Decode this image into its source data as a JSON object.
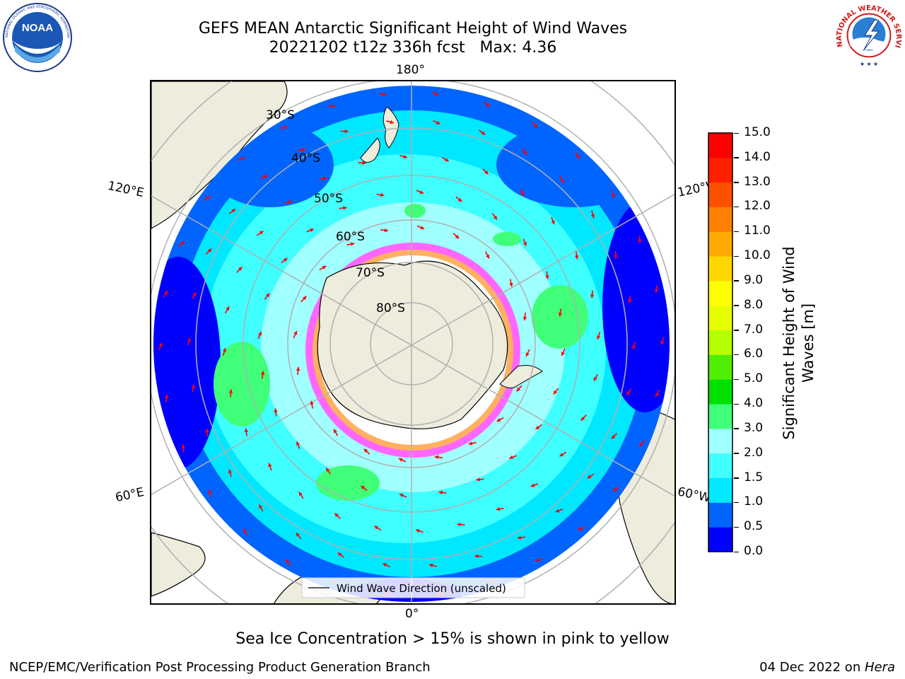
{
  "title": {
    "line1": "GEFS MEAN Antarctic Significant Height of Wind Waves",
    "line2": "20221202 t12z 336h fcst   Max: 4.36"
  },
  "logos": {
    "noaa_text": "NOAA",
    "noaa_ring_text": "NATIONAL OCEANIC AND ATMOSPHERIC ADMINISTRATION · U.S. DEPARTMENT OF COMMERCE",
    "nws_ring_text": "NATIONAL WEATHER SERVICE"
  },
  "map": {
    "projection": "south-polar-stereographic",
    "longitude_labels": [
      "180°",
      "120°E",
      "120°W",
      "60°E",
      "60°W",
      "0°"
    ],
    "latitude_labels": [
      "30°S",
      "40°S",
      "50°S",
      "60°S",
      "70°S",
      "80°S"
    ],
    "legend_text": "Wind Wave Direction (unscaled)",
    "arrow_color": "#ff0000",
    "land_color": "#eeecdc",
    "ice_colors": [
      "#ff00ff",
      "#ff80ff",
      "#ffa500",
      "#ffd700"
    ]
  },
  "colorbar": {
    "label": "Significant Height of Wind Waves [m]",
    "label_line1": "Significant Height of Wind",
    "label_line2": "Waves [m]",
    "ticks": [
      "0.0",
      "0.5",
      "1.0",
      "1.5",
      "2.0",
      "3.0",
      "4.0",
      "5.0",
      "6.0",
      "7.0",
      "8.0",
      "9.0",
      "10.0",
      "11.0",
      "12.0",
      "13.0",
      "14.0",
      "15.0"
    ],
    "colors": [
      "#0000ff",
      "#0064ff",
      "#00e8ff",
      "#40ffff",
      "#a0ffff",
      "#40ff78",
      "#00e000",
      "#50ee00",
      "#b4ff00",
      "#e6ff00",
      "#ffff00",
      "#ffd700",
      "#ffaa00",
      "#ff8000",
      "#ff5000",
      "#ff2000",
      "#ff0000"
    ]
  },
  "caption": "Sea Ice Concentration > 15% is shown in pink to yellow",
  "footer": {
    "left": "NCEP/EMC/Verification Post Processing Product Generation Branch",
    "right_prefix": "04 Dec 2022 on ",
    "right_italic": "Hera"
  }
}
